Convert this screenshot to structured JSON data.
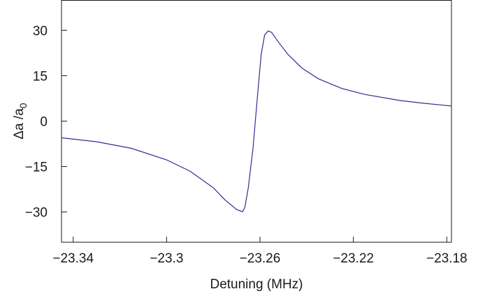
{
  "chart_data": {
    "type": "line",
    "title": "",
    "xlabel": "Detuning (MHz)",
    "ylabel": {
      "main": "Δa /a",
      "subscript": "0"
    },
    "xlim": [
      -23.345,
      -23.178
    ],
    "ylim": [
      -40,
      40
    ],
    "xticks": [
      -23.34,
      -23.3,
      -23.26,
      -23.22,
      -23.18
    ],
    "xtick_labels": [
      "−23.34",
      "−23.3",
      "−23.26",
      "−23.22",
      "−23.18"
    ],
    "yticks": [
      30,
      15,
      0,
      -15,
      -30
    ],
    "ytick_labels": [
      "30",
      "15",
      "0",
      "−15",
      "−30"
    ],
    "grid": false,
    "series": [
      {
        "color": "#2b2f8f",
        "x": [
          -23.345,
          -23.33,
          -23.315,
          -23.3,
          -23.29,
          -23.28,
          -23.275,
          -23.27,
          -23.2675,
          -23.2665,
          -23.265,
          -23.263,
          -23.261,
          -23.2595,
          -23.258,
          -23.2565,
          -23.255,
          -23.252,
          -23.248,
          -23.242,
          -23.235,
          -23.225,
          -23.215,
          -23.2,
          -23.19,
          -23.178
        ],
        "y": [
          -5.5,
          -6.8,
          -9.0,
          -12.8,
          -16.5,
          -22.0,
          -26.0,
          -29.2,
          -29.9,
          -28.5,
          -22.0,
          -9.0,
          9.0,
          22.0,
          28.5,
          29.8,
          29.3,
          26.0,
          22.0,
          17.5,
          14.0,
          10.8,
          8.8,
          6.8,
          5.9,
          5.0
        ]
      }
    ]
  }
}
